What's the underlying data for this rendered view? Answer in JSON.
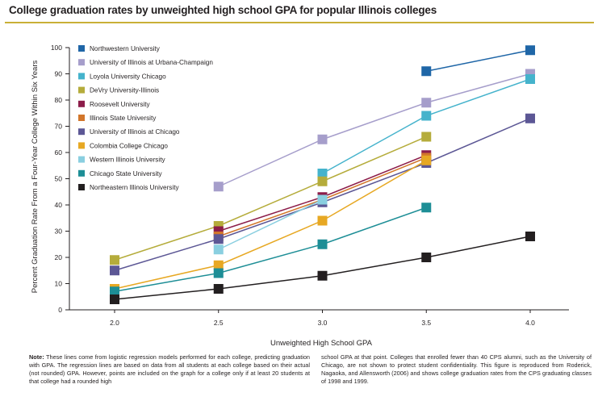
{
  "title": "College graduation rates by unweighted high school GPA for popular Illinois colleges",
  "colors": {
    "title_rule": "#c9b037",
    "axis": "#231f20"
  },
  "chart_data": {
    "type": "line",
    "title": "College graduation rates by unweighted high school GPA for popular Illinois colleges",
    "xlabel": "Unweighted High School GPA",
    "ylabel": "Percent Graduation Rate From a Four-Year College Within Six Years",
    "xlim": [
      2.0,
      4.0
    ],
    "ylim": [
      0,
      100
    ],
    "x_ticks": [
      "2.0",
      "2.5",
      "3.0",
      "3.5",
      "4.0"
    ],
    "y_ticks": [
      "0",
      "10",
      "20",
      "30",
      "40",
      "50",
      "60",
      "70",
      "80",
      "90",
      "100"
    ],
    "grid": false,
    "legend_position": "top-left",
    "series": [
      {
        "name": "Northwestern University",
        "color": "#1f66a7",
        "points": [
          [
            3.5,
            91
          ],
          [
            4.0,
            99
          ]
        ]
      },
      {
        "name": "University of Illinois at Urbana-Champaign",
        "color": "#a69ecb",
        "points": [
          [
            2.5,
            47
          ],
          [
            3.0,
            65
          ],
          [
            3.5,
            79
          ],
          [
            4.0,
            90
          ]
        ]
      },
      {
        "name": "Loyola University Chicago",
        "color": "#45b3cc",
        "points": [
          [
            3.0,
            52
          ],
          [
            3.5,
            74
          ],
          [
            4.0,
            88
          ]
        ]
      },
      {
        "name": "DeVry University-Illinois",
        "color": "#b5ac3b",
        "points": [
          [
            2.0,
            19
          ],
          [
            2.5,
            32
          ],
          [
            3.0,
            49
          ],
          [
            3.5,
            66
          ]
        ]
      },
      {
        "name": "Roosevelt University",
        "color": "#8c1d4a",
        "points": [
          [
            2.5,
            30
          ],
          [
            3.0,
            43
          ],
          [
            3.5,
            59
          ]
        ]
      },
      {
        "name": "Illinois State University",
        "color": "#d2762b",
        "points": [
          [
            2.5,
            28
          ],
          [
            3.0,
            42
          ],
          [
            3.5,
            58
          ]
        ]
      },
      {
        "name": "University of Illinois at Chicago",
        "color": "#5c5795",
        "points": [
          [
            2.0,
            15
          ],
          [
            2.5,
            27
          ],
          [
            3.0,
            41
          ],
          [
            3.5,
            56
          ],
          [
            4.0,
            73
          ]
        ]
      },
      {
        "name": "Colombia College Chicago",
        "color": "#e7a823",
        "points": [
          [
            2.0,
            8
          ],
          [
            2.5,
            17
          ],
          [
            3.0,
            34
          ],
          [
            3.5,
            57
          ]
        ]
      },
      {
        "name": "Western Illinois University",
        "color": "#8acfe0",
        "points": [
          [
            2.5,
            23
          ],
          [
            3.0,
            42
          ]
        ]
      },
      {
        "name": "Chicago State University",
        "color": "#1d8e96",
        "points": [
          [
            2.0,
            7
          ],
          [
            2.5,
            14
          ],
          [
            3.0,
            25
          ],
          [
            3.5,
            39
          ]
        ]
      },
      {
        "name": "Northeastern Illinois University",
        "color": "#231f20",
        "points": [
          [
            2.0,
            4
          ],
          [
            2.5,
            8
          ],
          [
            3.0,
            13
          ],
          [
            3.5,
            20
          ],
          [
            4.0,
            28
          ]
        ]
      }
    ]
  },
  "note": {
    "label": "Note:",
    "left": " These lines come from logistic regression models performed for each college, predicting graduation with GPA. The regression lines are based on data from all students at each college based on their actual (not rounded) GPA. However, points are included on the graph for a college only if at least 20 students at that college had a rounded high",
    "right": "school GPA at that point. Colleges that enrolled fewer than 40 CPS alumni, such as the University of Chicago, are not shown to protect student confidentiality. This figure is reproduced from Roderick, Nagaoka, and Allensworth (2006) and shows college graduation rates from the CPS graduating classes of 1998 and 1999."
  }
}
